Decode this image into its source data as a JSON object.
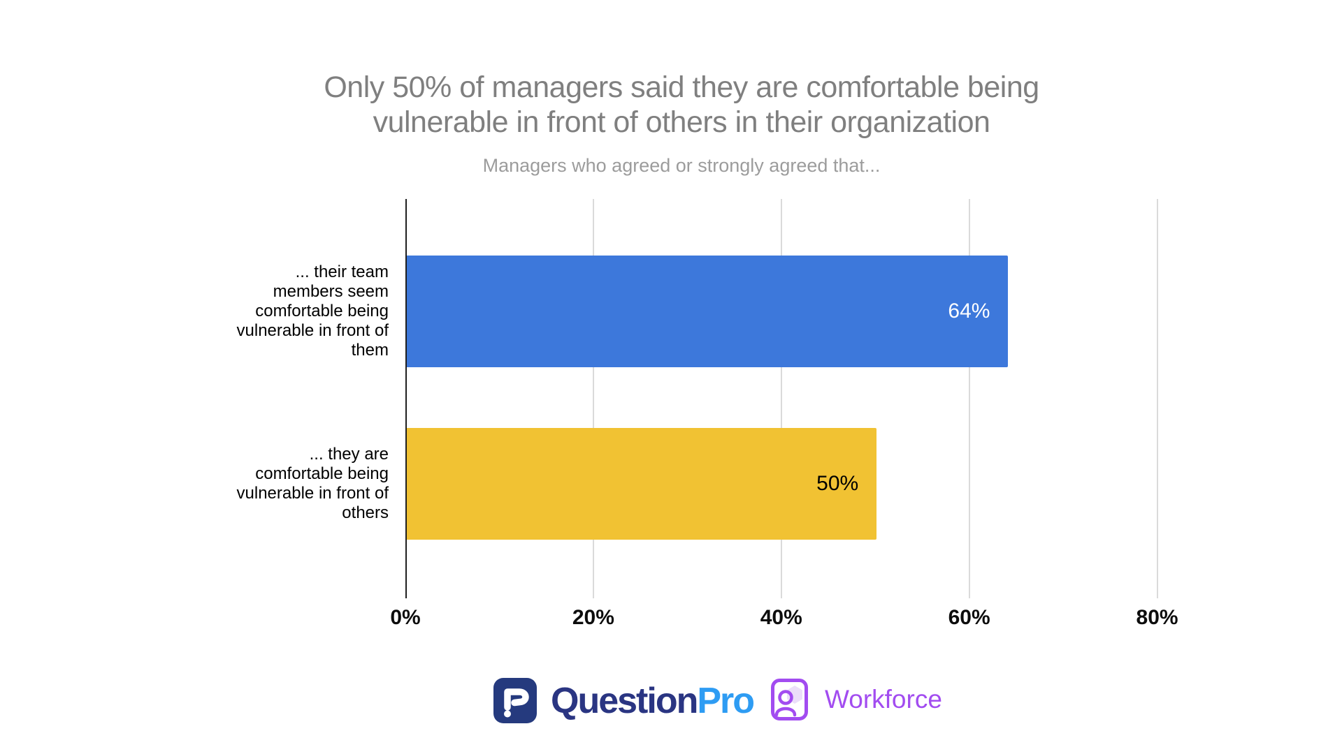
{
  "chart_data": {
    "type": "bar",
    "orientation": "horizontal",
    "title": "Only 50% of managers said they are comfortable being vulnerable in front of others in their organization",
    "title_lines": [
      "Only 50% of managers said they are comfortable being",
      "vulnerable in front of others in their organization"
    ],
    "subtitle": "Managers who agreed or strongly agreed that...",
    "categories": [
      "... their team members seem comfortable being vulnerable in front of them",
      "... they are comfortable being vulnerable in front of others"
    ],
    "category_lines": [
      [
        "... their team",
        "members seem",
        "comfortable being",
        "vulnerable in front of",
        "them"
      ],
      [
        "... they are",
        "comfortable being",
        "vulnerable in front of",
        "others"
      ]
    ],
    "values": [
      64,
      50
    ],
    "value_labels": [
      "64%",
      "50%"
    ],
    "bar_colors": [
      "#3D78DB",
      "#F1C233"
    ],
    "value_label_colors": [
      "#FFFFFF",
      "#000000"
    ],
    "x_ticks": [
      {
        "value": 0,
        "label": "0%"
      },
      {
        "value": 20,
        "label": "20%"
      },
      {
        "value": 40,
        "label": "40%"
      },
      {
        "value": 60,
        "label": "60%"
      },
      {
        "value": 80,
        "label": "80%"
      }
    ],
    "xlim": [
      0,
      90
    ],
    "grid": true,
    "legend": "none",
    "axis_color": "#1F1F1F",
    "gridline_color": "#DADADA",
    "title_color": "#7F7F7F",
    "subtitle_color": "#9C9C9C"
  },
  "footer": {
    "questionpro": {
      "icon": "questionpro-logo-icon",
      "text_question": "Question",
      "text_pro": "Pro",
      "color_icon_bg": "#253A7E",
      "color_question": "#2A3582",
      "color_pro": "#2E9CF3"
    },
    "workforce": {
      "icon": "workforce-person-icon",
      "text": "Workforce",
      "color": "#A24CF0",
      "hexagon_fill": "#EBDEF9"
    }
  }
}
